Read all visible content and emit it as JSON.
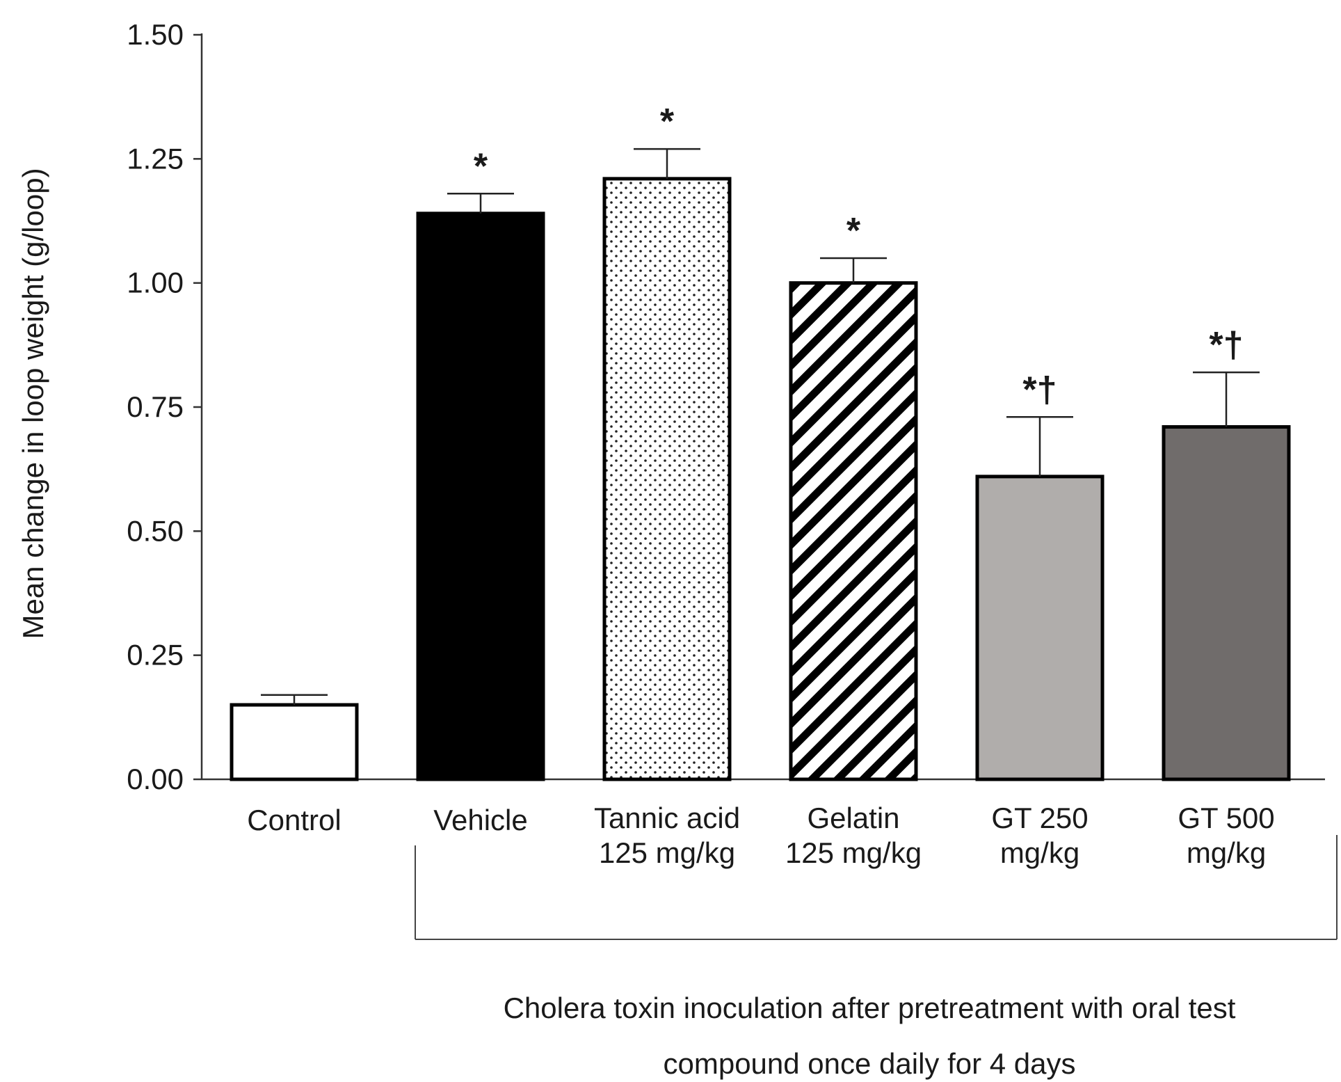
{
  "chart_data": {
    "type": "bar",
    "title": "",
    "xlabel": "",
    "ylabel": "Mean change in loop weight  (g/loop)",
    "ylim": [
      0,
      1.5
    ],
    "yticks": [
      "0.00",
      "0.25",
      "0.50",
      "0.75",
      "1.00",
      "1.25",
      "1.50"
    ],
    "categories": [
      {
        "lines": [
          "Control"
        ]
      },
      {
        "lines": [
          "Vehicle"
        ]
      },
      {
        "lines": [
          "Tannic acid",
          "125 mg/kg"
        ]
      },
      {
        "lines": [
          "Gelatin",
          "125 mg/kg"
        ]
      },
      {
        "lines": [
          "GT 250",
          "mg/kg"
        ]
      },
      {
        "lines": [
          "GT 500",
          "mg/kg"
        ]
      }
    ],
    "values": [
      0.15,
      1.14,
      1.21,
      1.0,
      0.61,
      0.71
    ],
    "errors": [
      0.02,
      0.04,
      0.06,
      0.05,
      0.12,
      0.11
    ],
    "significance": [
      "",
      "*",
      "*",
      "*",
      "*†",
      "*†"
    ],
    "fills": [
      {
        "pattern": "solid",
        "color": "#ffffff"
      },
      {
        "pattern": "solid",
        "color": "#000000"
      },
      {
        "pattern": "dots",
        "color": "#ffffff"
      },
      {
        "pattern": "diagonal",
        "color": "#ffffff"
      },
      {
        "pattern": "solid",
        "color": "#b0adab"
      },
      {
        "pattern": "solid",
        "color": "#706c6b"
      }
    ],
    "bracket_annotation": [
      "Cholera toxin inoculation after pretreatment with oral test",
      "compound once daily for 4 days"
    ]
  }
}
